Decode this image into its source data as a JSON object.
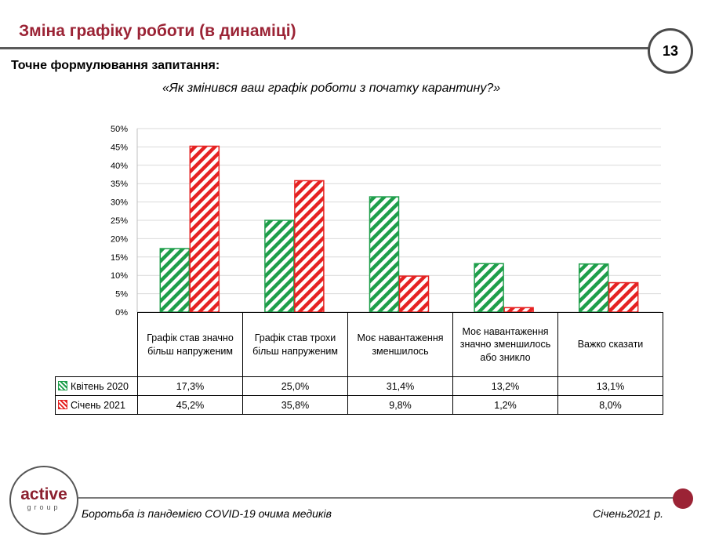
{
  "header": {
    "title": "Зміна графіку роботи (в динаміці)",
    "page_number": "13",
    "subtitle": "Точне формулювання запитання:",
    "question": "«Як змінився ваш графік роботи з початку карантину?»"
  },
  "colors": {
    "green": "#1e9e4a",
    "red": "#e52222",
    "accent": "#9b2335"
  },
  "chart_data": {
    "type": "bar",
    "categories": [
      "Графік став значно більш напруженим",
      "Графік став трохи більш напруженим",
      "Моє навантаження зменшилось",
      "Моє навантаження значно зменшилось або зникло",
      "Важко сказати"
    ],
    "series": [
      {
        "name": "Квітень 2020",
        "values": [
          17.3,
          25.0,
          31.4,
          13.2,
          13.1
        ],
        "labels": [
          "17,3%",
          "25,0%",
          "31,4%",
          "13,2%",
          "13,1%"
        ]
      },
      {
        "name": "Січень 2021",
        "values": [
          45.2,
          35.8,
          9.8,
          1.2,
          8.0
        ],
        "labels": [
          "45,2%",
          "35,8%",
          "9,8%",
          "1,2%",
          "8,0%"
        ]
      }
    ],
    "ylim": [
      0,
      50
    ],
    "yticks": [
      "0%",
      "5%",
      "10%",
      "15%",
      "20%",
      "25%",
      "30%",
      "35%",
      "40%",
      "45%",
      "50%"
    ],
    "grid": true,
    "legend": "data-table"
  },
  "footer": {
    "logo_main": "active",
    "logo_sub": "group",
    "caption": "Боротьба із пандемією COVID-19 очима медиків",
    "date": "Січень2021 р."
  }
}
